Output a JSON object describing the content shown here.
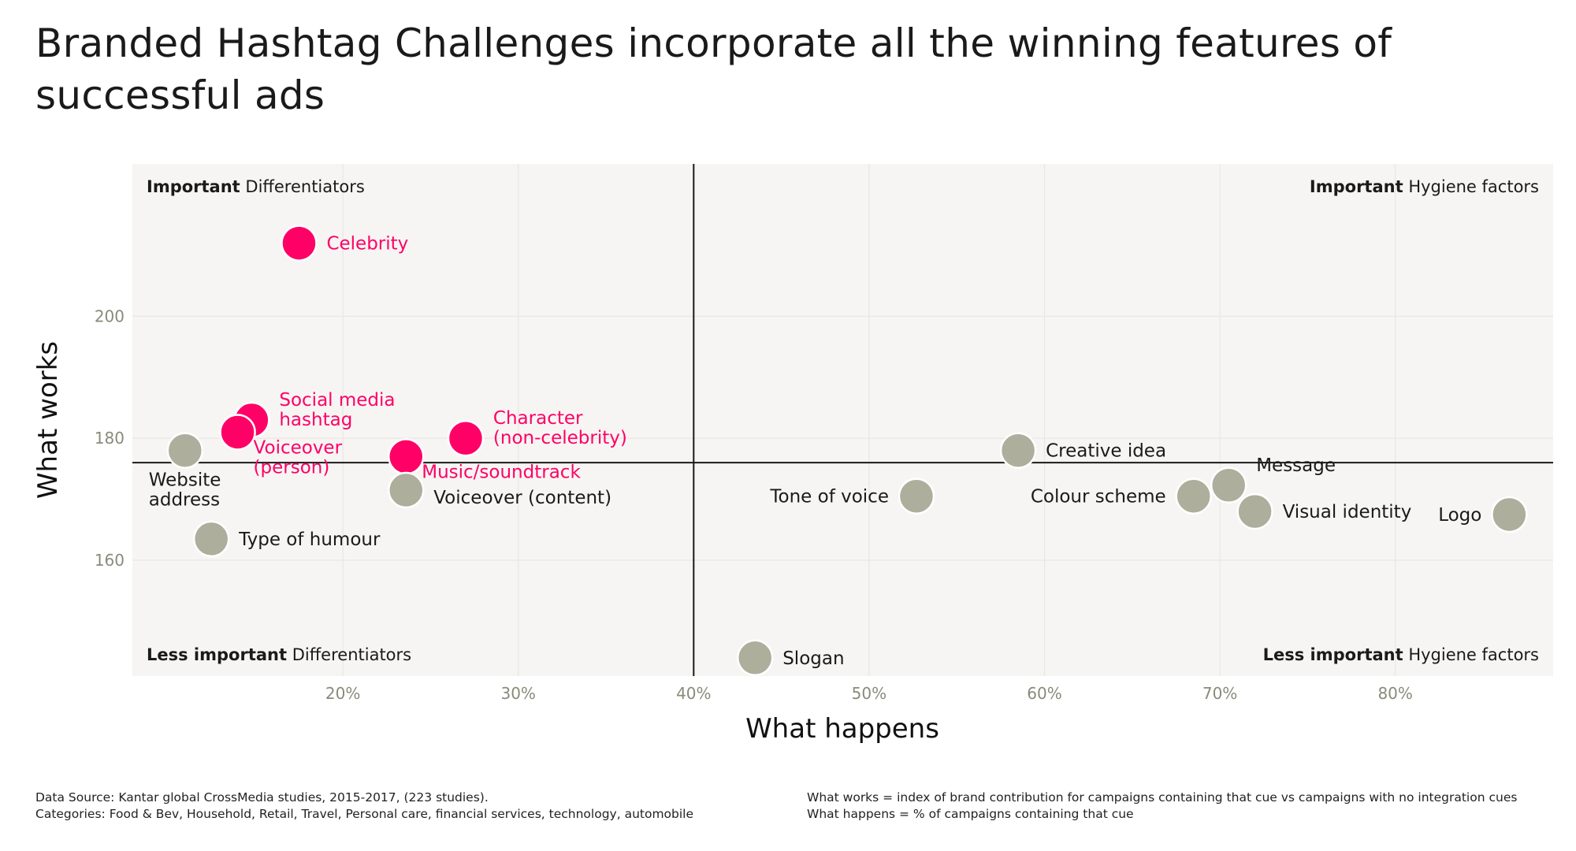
{
  "title": "Branded Hashtag Challenges incorporate all the winning features of successful ads",
  "footnotes": {
    "left": [
      "Data Source: Kantar global CrossMedia studies, 2015-2017, (223 studies).",
      "Categories: Food & Bev, Household, Retail, Travel, Personal care, financial services, technology, automobile"
    ],
    "right": [
      "What works = index of brand contribution for campaigns containing that cue vs campaigns with no integration cues",
      "What happens = % of campaigns containing that cue"
    ]
  },
  "colors": {
    "highlight": "#ff0066",
    "neutral": "#aeae9d",
    "panel": "#f6f5f3",
    "grid": "#e9e7e2",
    "tick": "#8a8a7a"
  },
  "chart_data": {
    "type": "scatter",
    "xlabel": "What happens",
    "ylabel": "What works",
    "xlim": [
      8,
      89
    ],
    "ylim": [
      141,
      225
    ],
    "x_ticks": [
      20,
      30,
      40,
      50,
      60,
      70,
      80
    ],
    "x_tick_labels": [
      "20%",
      "30%",
      "40%",
      "50%",
      "60%",
      "70%",
      "80%"
    ],
    "y_ticks": [
      160,
      180,
      200
    ],
    "y_tick_labels": [
      "160",
      "180",
      "200"
    ],
    "grid": true,
    "reference_lines": {
      "x": 40,
      "y": 176
    },
    "quadrants": [
      {
        "position": "top-left",
        "bold": "Important",
        "text": " Differentiators"
      },
      {
        "position": "top-right",
        "bold": "Important",
        "text": " Hygiene factors"
      },
      {
        "position": "bottom-left",
        "bold": "Less important",
        "text": " Differentiators"
      },
      {
        "position": "bottom-right",
        "bold": "Less important",
        "text": " Hygiene factors"
      }
    ],
    "points": [
      {
        "label": [
          "Celebrity"
        ],
        "x": 17.5,
        "y": 212,
        "highlight": true,
        "label_side": "right"
      },
      {
        "label": [
          "Social media",
          "hashtag"
        ],
        "x": 14.8,
        "y": 183,
        "highlight": true,
        "label_side": "right-up"
      },
      {
        "label": [
          "Voiceover",
          "(person)"
        ],
        "x": 14.0,
        "y": 181,
        "highlight": true,
        "label_side": "below-right"
      },
      {
        "label": [
          "Character",
          "(non-celebrity)"
        ],
        "x": 27.0,
        "y": 180,
        "highlight": true,
        "label_side": "right-up"
      },
      {
        "label": [
          "Music/soundtrack"
        ],
        "x": 23.6,
        "y": 177,
        "highlight": true,
        "label_side": "below-right"
      },
      {
        "label": [
          "Website",
          "address"
        ],
        "x": 11.0,
        "y": 178,
        "highlight": false,
        "label_side": "below"
      },
      {
        "label": [
          "Voiceover (content)"
        ],
        "x": 23.6,
        "y": 171.5,
        "highlight": false,
        "label_side": "right-down"
      },
      {
        "label": [
          "Type of humour"
        ],
        "x": 12.5,
        "y": 163.5,
        "highlight": false,
        "label_side": "right"
      },
      {
        "label": [
          "Creative idea"
        ],
        "x": 58.5,
        "y": 178,
        "highlight": false,
        "label_side": "right"
      },
      {
        "label": [
          "Tone of voice"
        ],
        "x": 52.7,
        "y": 170.5,
        "highlight": false,
        "label_side": "left"
      },
      {
        "label": [
          "Colour scheme"
        ],
        "x": 68.5,
        "y": 170.5,
        "highlight": false,
        "label_side": "left"
      },
      {
        "label": [
          "Message"
        ],
        "x": 70.5,
        "y": 172.3,
        "highlight": false,
        "label_side": "right-up"
      },
      {
        "label": [
          "Visual identity"
        ],
        "x": 72.0,
        "y": 168,
        "highlight": false,
        "label_side": "right"
      },
      {
        "label": [
          "Logo"
        ],
        "x": 86.5,
        "y": 167.5,
        "highlight": false,
        "label_side": "left"
      },
      {
        "label": [
          "Slogan"
        ],
        "x": 43.5,
        "y": 144,
        "highlight": false,
        "label_side": "right"
      }
    ]
  }
}
